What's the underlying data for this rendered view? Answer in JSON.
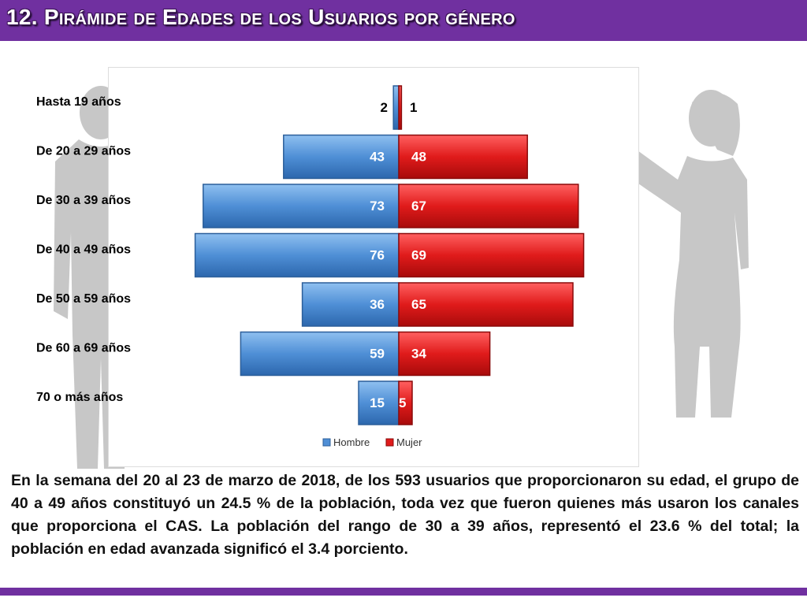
{
  "title": "12. Pirámide de Edades de los Usuarios por género",
  "colors": {
    "title_bar": "#7030a0",
    "hombre": "#4f8fd6",
    "mujer": "#e01b1b",
    "silhouette": "#c7c7c7"
  },
  "chart_data": {
    "type": "bar",
    "orientation": "horizontal",
    "layout": "population-pyramid",
    "categories": [
      "Hasta 19 años",
      "De 20 a 29 años",
      "De 30 a 39 años",
      "De 40 a 49 años",
      "De 50 a 59 años",
      "De 60 a 69 años",
      "70 o más años"
    ],
    "series": [
      {
        "name": "Hombre",
        "side": "left",
        "color": "#4f8fd6",
        "values": [
          2,
          43,
          73,
          76,
          36,
          59,
          15
        ]
      },
      {
        "name": "Mujer",
        "side": "right",
        "color": "#e01b1b",
        "values": [
          1,
          48,
          67,
          69,
          65,
          34,
          5
        ]
      }
    ],
    "legend": {
      "position": "bottom",
      "entries": [
        "Hombre",
        "Mujer"
      ]
    },
    "grid": false
  },
  "description": "En la semana del 20 al 23 de marzo de 2018, de los 593 usuarios que proporcionaron su edad, el grupo de 40 a 49 años constituyó un 24.5 % de la población, toda vez que fueron quienes más usaron los canales que proporciona el CAS. La población del rango de 30 a 39 años, representó el 23.6 % del total; la población en edad avanzada significó el 3.4 porciento."
}
